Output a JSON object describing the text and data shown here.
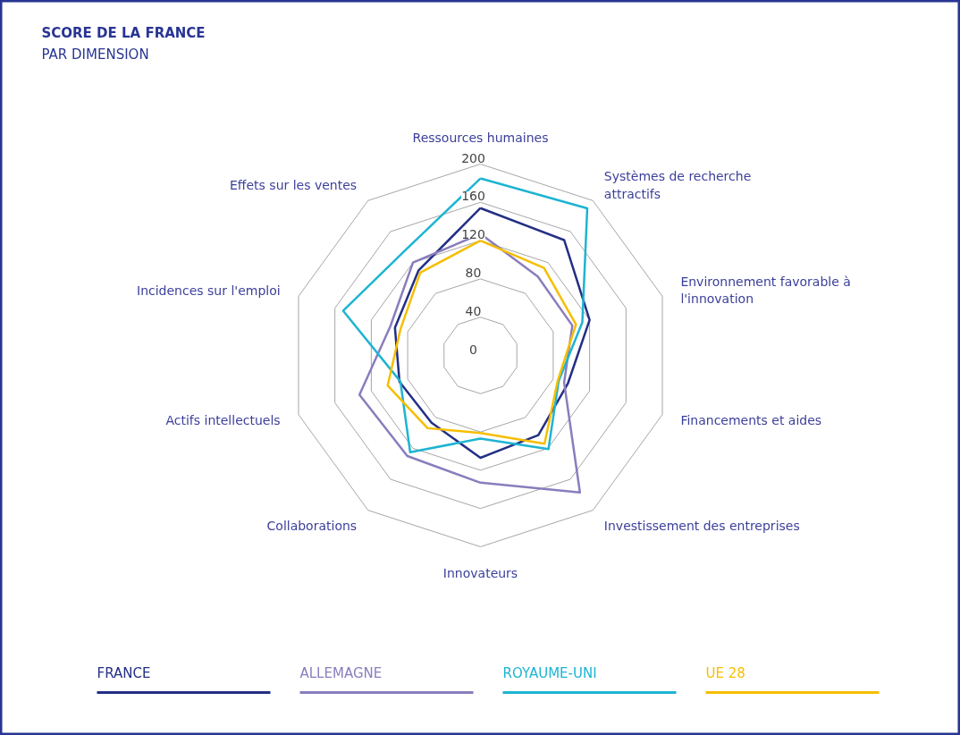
{
  "chart_data": {
    "type": "radar",
    "title": "SCORE DE LA FRANCE",
    "subtitle": "PAR DIMENSION",
    "categories": [
      "Ressources humaines",
      "Systèmes de recherche attractifs",
      "Environnement favorable à l'innovation",
      "Financements et aides",
      "Investissement des entreprises",
      "Innovateurs",
      "Collaborations",
      "Actifs intellectuels",
      "Incidences sur l'emploi",
      "Effets sur les ventes"
    ],
    "ylim": [
      0,
      200
    ],
    "yticks": [
      0,
      40,
      80,
      120,
      160,
      200
    ],
    "grid": true,
    "legend": "bottom",
    "marker": "none",
    "line_style": "solid",
    "series": [
      {
        "name": "FRANCE",
        "color": "#232f84",
        "values": [
          154,
          149,
          120,
          96,
          103,
          107,
          87,
          89,
          94,
          110
        ]
      },
      {
        "name": "ALLEMAGNE",
        "color": "#8a7dbd",
        "values": [
          127,
          102,
          101,
          92,
          177,
          133,
          130,
          133,
          99,
          120
        ]
      },
      {
        "name": "ROYAUME-UNI",
        "color": "#1eb4d2",
        "values": [
          185,
          190,
          112,
          86,
          121,
          87,
          125,
          88,
          151,
          135
        ]
      },
      {
        "name": "UE 28",
        "color": "#f6be00",
        "values": [
          120,
          113,
          105,
          85,
          114,
          81,
          94,
          102,
          88,
          107
        ]
      }
    ]
  }
}
